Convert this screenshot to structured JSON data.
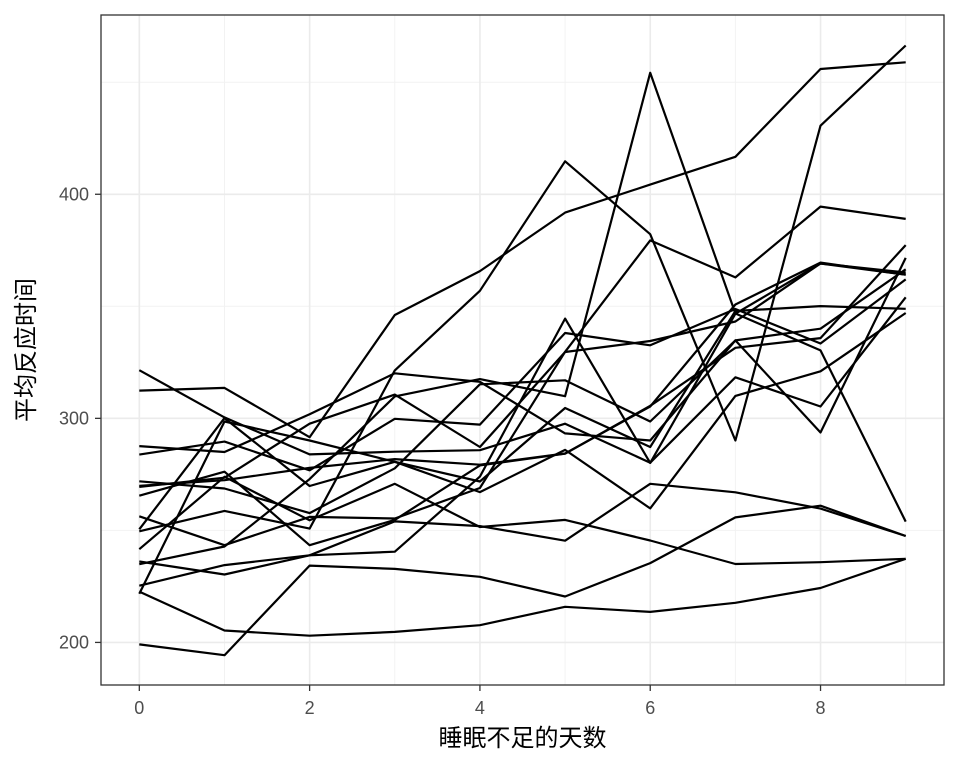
{
  "chart_data": {
    "type": "line",
    "title": "",
    "xlabel": "睡眠不足的天数",
    "ylabel": "平均反应时间",
    "xlim": [
      -0.45,
      9.45
    ],
    "ylim": [
      181,
      480
    ],
    "grid": true,
    "legend": "none",
    "line_color": "#000000",
    "x_ticks": [
      0,
      2,
      4,
      6,
      8
    ],
    "x_tick_labels": [
      "0",
      "2",
      "4",
      "6",
      "8"
    ],
    "y_ticks": [
      200,
      300,
      400
    ],
    "y_tick_labels": [
      "200",
      "300",
      "400"
    ],
    "x": [
      0,
      1,
      2,
      3,
      4,
      5,
      6,
      7,
      8,
      9
    ],
    "series": [
      {
        "values": [
          249.6,
          258.7,
          250.8,
          321.4,
          356.9,
          414.7,
          382.2,
          290.1,
          430.6,
          466.4
        ]
      },
      {
        "values": [
          222.7,
          205.3,
          203.0,
          204.7,
          207.7,
          215.9,
          213.6,
          217.7,
          224.3,
          237.3
        ]
      },
      {
        "values": [
          199.1,
          194.3,
          234.3,
          232.8,
          229.3,
          220.5,
          235.4,
          255.8,
          261.0,
          247.5
        ]
      },
      {
        "values": [
          321.5,
          300.4,
          283.9,
          285.1,
          285.8,
          297.6,
          280.2,
          318.3,
          305.3,
          354.0
        ]
      },
      {
        "values": [
          287.6,
          285.0,
          301.8,
          320.1,
          316.3,
          293.3,
          290.1,
          334.8,
          293.7,
          371.6
        ]
      },
      {
        "values": [
          234.9,
          242.8,
          272.9,
          309.8,
          317.5,
          309.9,
          454.2,
          346.8,
          330.3,
          253.9
        ]
      },
      {
        "values": [
          283.8,
          289.6,
          276.8,
          299.8,
          297.2,
          338.1,
          332.6,
          348.8,
          333.4,
          362.0
        ]
      },
      {
        "values": [
          265.5,
          276.2,
          243.4,
          254.7,
          279.0,
          284.2,
          305.6,
          331.5,
          335.8,
          377.3
        ]
      },
      {
        "values": [
          241.6,
          273.9,
          254.5,
          270.8,
          251.5,
          254.7,
          245.5,
          235.0,
          235.8,
          237.3
        ]
      },
      {
        "values": [
          312.4,
          313.6,
          291.6,
          346.1,
          365.7,
          391.8,
          404.3,
          416.7,
          455.9,
          458.9
        ]
      },
      {
        "values": [
          236.1,
          230.3,
          238.9,
          254.0,
          251.9,
          245.4,
          270.8,
          267.0,
          259.7,
          247.5
        ]
      },
      {
        "values": [
          256.3,
          243.4,
          256.0,
          255.3,
          268.9,
          329.7,
          379.4,
          362.9,
          394.5,
          389.0
        ]
      },
      {
        "values": [
          250.5,
          300.1,
          269.8,
          280.6,
          271.8,
          304.6,
          287.2,
          347.9,
          350.1,
          348.9
        ]
      },
      {
        "values": [
          221.7,
          298.6,
          290.1,
          280.6,
          267.1,
          285.9,
          259.8,
          310.0,
          321.0,
          347.0
        ]
      },
      {
        "values": [
          271.9,
          268.7,
          257.7,
          277.7,
          315.2,
          317.0,
          298.6,
          334.8,
          340.0,
          366.5
        ]
      },
      {
        "values": [
          225.3,
          234.5,
          238.9,
          240.5,
          274.0,
          344.5,
          280.1,
          346.7,
          369.1,
          365.1
        ]
      },
      {
        "values": [
          269.9,
          272.4,
          277.9,
          281.8,
          279.3,
          284.3,
          305.3,
          350.8,
          369.5,
          364.1
        ]
      },
      {
        "values": [
          269.4,
          273.5,
          297.6,
          310.6,
          287.2,
          329.6,
          334.5,
          343.2,
          369.1,
          364.1
        ]
      }
    ]
  }
}
